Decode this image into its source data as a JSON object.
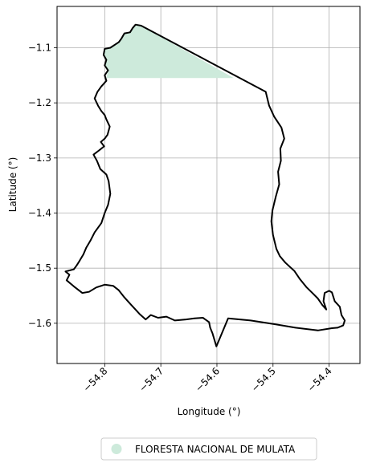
{
  "chart_data": {
    "type": "map",
    "xlabel": "Longitude (°)",
    "ylabel": "Latitude (°)",
    "xlim": [
      -54.885,
      -54.345
    ],
    "ylim": [
      -1.673,
      -1.025
    ],
    "x_ticks": [
      {
        "value": -54.8,
        "label": "−54.8"
      },
      {
        "value": -54.7,
        "label": "−54.7"
      },
      {
        "value": -54.6,
        "label": "−54.6"
      },
      {
        "value": -54.5,
        "label": "−54.5"
      },
      {
        "value": -54.4,
        "label": "−54.4"
      }
    ],
    "y_ticks": [
      {
        "value": -1.1,
        "label": "−1.1"
      },
      {
        "value": -1.2,
        "label": "−1.2"
      },
      {
        "value": -1.3,
        "label": "−1.3"
      },
      {
        "value": -1.4,
        "label": "−1.4"
      },
      {
        "value": -1.5,
        "label": "−1.5"
      },
      {
        "value": -1.6,
        "label": "−1.6"
      }
    ],
    "grid": true,
    "boundary_outline": [
      [
        -54.735,
        -1.06
      ],
      [
        -54.745,
        -1.058
      ],
      [
        -54.75,
        -1.064
      ],
      [
        -54.755,
        -1.072
      ],
      [
        -54.765,
        -1.074
      ],
      [
        -54.77,
        -1.083
      ],
      [
        -54.775,
        -1.09
      ],
      [
        -54.79,
        -1.1
      ],
      [
        -54.8,
        -1.102
      ],
      [
        -54.802,
        -1.113
      ],
      [
        -54.797,
        -1.122
      ],
      [
        -54.8,
        -1.132
      ],
      [
        -54.794,
        -1.141
      ],
      [
        -54.8,
        -1.15
      ],
      [
        -54.797,
        -1.16
      ],
      [
        -54.806,
        -1.17
      ],
      [
        -54.813,
        -1.18
      ],
      [
        -54.818,
        -1.192
      ],
      [
        -54.812,
        -1.205
      ],
      [
        -54.806,
        -1.215
      ],
      [
        -54.8,
        -1.222
      ],
      [
        -54.797,
        -1.23
      ],
      [
        -54.791,
        -1.243
      ],
      [
        -54.795,
        -1.258
      ],
      [
        -54.8,
        -1.265
      ],
      [
        -54.807,
        -1.271
      ],
      [
        -54.801,
        -1.279
      ],
      [
        -54.811,
        -1.287
      ],
      [
        -54.82,
        -1.294
      ],
      [
        -54.814,
        -1.305
      ],
      [
        -54.808,
        -1.32
      ],
      [
        -54.797,
        -1.33
      ],
      [
        -54.793,
        -1.342
      ],
      [
        -54.79,
        -1.365
      ],
      [
        -54.794,
        -1.385
      ],
      [
        -54.8,
        -1.4
      ],
      [
        -54.806,
        -1.418
      ],
      [
        -54.818,
        -1.435
      ],
      [
        -54.825,
        -1.449
      ],
      [
        -54.833,
        -1.463
      ],
      [
        -54.838,
        -1.475
      ],
      [
        -54.845,
        -1.487
      ],
      [
        -54.85,
        -1.495
      ],
      [
        -54.855,
        -1.502
      ],
      [
        -54.87,
        -1.506
      ],
      [
        -54.863,
        -1.512
      ],
      [
        -54.868,
        -1.522
      ],
      [
        -54.855,
        -1.533
      ],
      [
        -54.84,
        -1.545
      ],
      [
        -54.828,
        -1.543
      ],
      [
        -54.815,
        -1.535
      ],
      [
        -54.8,
        -1.53
      ],
      [
        -54.785,
        -1.532
      ],
      [
        -54.775,
        -1.54
      ],
      [
        -54.765,
        -1.553
      ],
      [
        -54.757,
        -1.562
      ],
      [
        -54.748,
        -1.572
      ],
      [
        -54.738,
        -1.583
      ],
      [
        -54.727,
        -1.593
      ],
      [
        -54.718,
        -1.585
      ],
      [
        -54.705,
        -1.59
      ],
      [
        -54.69,
        -1.588
      ],
      [
        -54.675,
        -1.595
      ],
      [
        -54.655,
        -1.593
      ],
      [
        -54.64,
        -1.591
      ],
      [
        -54.625,
        -1.59
      ],
      [
        -54.614,
        -1.598
      ],
      [
        -54.612,
        -1.608
      ],
      [
        -54.608,
        -1.618
      ],
      [
        -54.601,
        -1.642
      ],
      [
        -54.58,
        -1.591
      ],
      [
        -54.54,
        -1.595
      ],
      [
        -54.495,
        -1.602
      ],
      [
        -54.46,
        -1.608
      ],
      [
        -54.42,
        -1.613
      ],
      [
        -54.395,
        -1.609
      ],
      [
        -54.385,
        -1.608
      ],
      [
        -54.375,
        -1.604
      ],
      [
        -54.372,
        -1.595
      ],
      [
        -54.378,
        -1.585
      ],
      [
        -54.381,
        -1.57
      ],
      [
        -54.39,
        -1.56
      ],
      [
        -54.395,
        -1.544
      ],
      [
        -54.4,
        -1.541
      ],
      [
        -54.408,
        -1.545
      ],
      [
        -54.41,
        -1.56
      ],
      [
        -54.405,
        -1.575
      ],
      [
        -54.412,
        -1.567
      ],
      [
        -54.42,
        -1.555
      ],
      [
        -54.43,
        -1.545
      ],
      [
        -54.44,
        -1.535
      ],
      [
        -54.452,
        -1.52
      ],
      [
        -54.462,
        -1.505
      ],
      [
        -54.478,
        -1.49
      ],
      [
        -54.488,
        -1.478
      ],
      [
        -54.494,
        -1.465
      ],
      [
        -54.5,
        -1.44
      ],
      [
        -54.503,
        -1.415
      ],
      [
        -54.501,
        -1.395
      ],
      [
        -54.495,
        -1.37
      ],
      [
        -54.489,
        -1.348
      ],
      [
        -54.491,
        -1.325
      ],
      [
        -54.486,
        -1.305
      ],
      [
        -54.487,
        -1.283
      ],
      [
        -54.48,
        -1.265
      ],
      [
        -54.485,
        -1.245
      ],
      [
        -54.498,
        -1.225
      ],
      [
        -54.507,
        -1.205
      ],
      [
        -54.513,
        -1.18
      ],
      [
        -54.735,
        -1.06
      ]
    ],
    "filled_area": [
      [
        -54.735,
        -1.06
      ],
      [
        -54.745,
        -1.058
      ],
      [
        -54.75,
        -1.064
      ],
      [
        -54.755,
        -1.072
      ],
      [
        -54.765,
        -1.074
      ],
      [
        -54.77,
        -1.083
      ],
      [
        -54.775,
        -1.09
      ],
      [
        -54.79,
        -1.1
      ],
      [
        -54.8,
        -1.102
      ],
      [
        -54.802,
        -1.113
      ],
      [
        -54.797,
        -1.122
      ],
      [
        -54.8,
        -1.132
      ],
      [
        -54.794,
        -1.141
      ],
      [
        -54.797,
        -1.155
      ],
      [
        -54.57,
        -1.155
      ],
      [
        -54.735,
        -1.06
      ]
    ],
    "fill_color": "#cdeadb",
    "boundary_color": "#000000",
    "legend": {
      "position": "bottom-center",
      "entries": [
        {
          "label": "FLORESTA NACIONAL DE MULATA",
          "color": "#cdeadb",
          "marker": "circle"
        }
      ]
    }
  }
}
